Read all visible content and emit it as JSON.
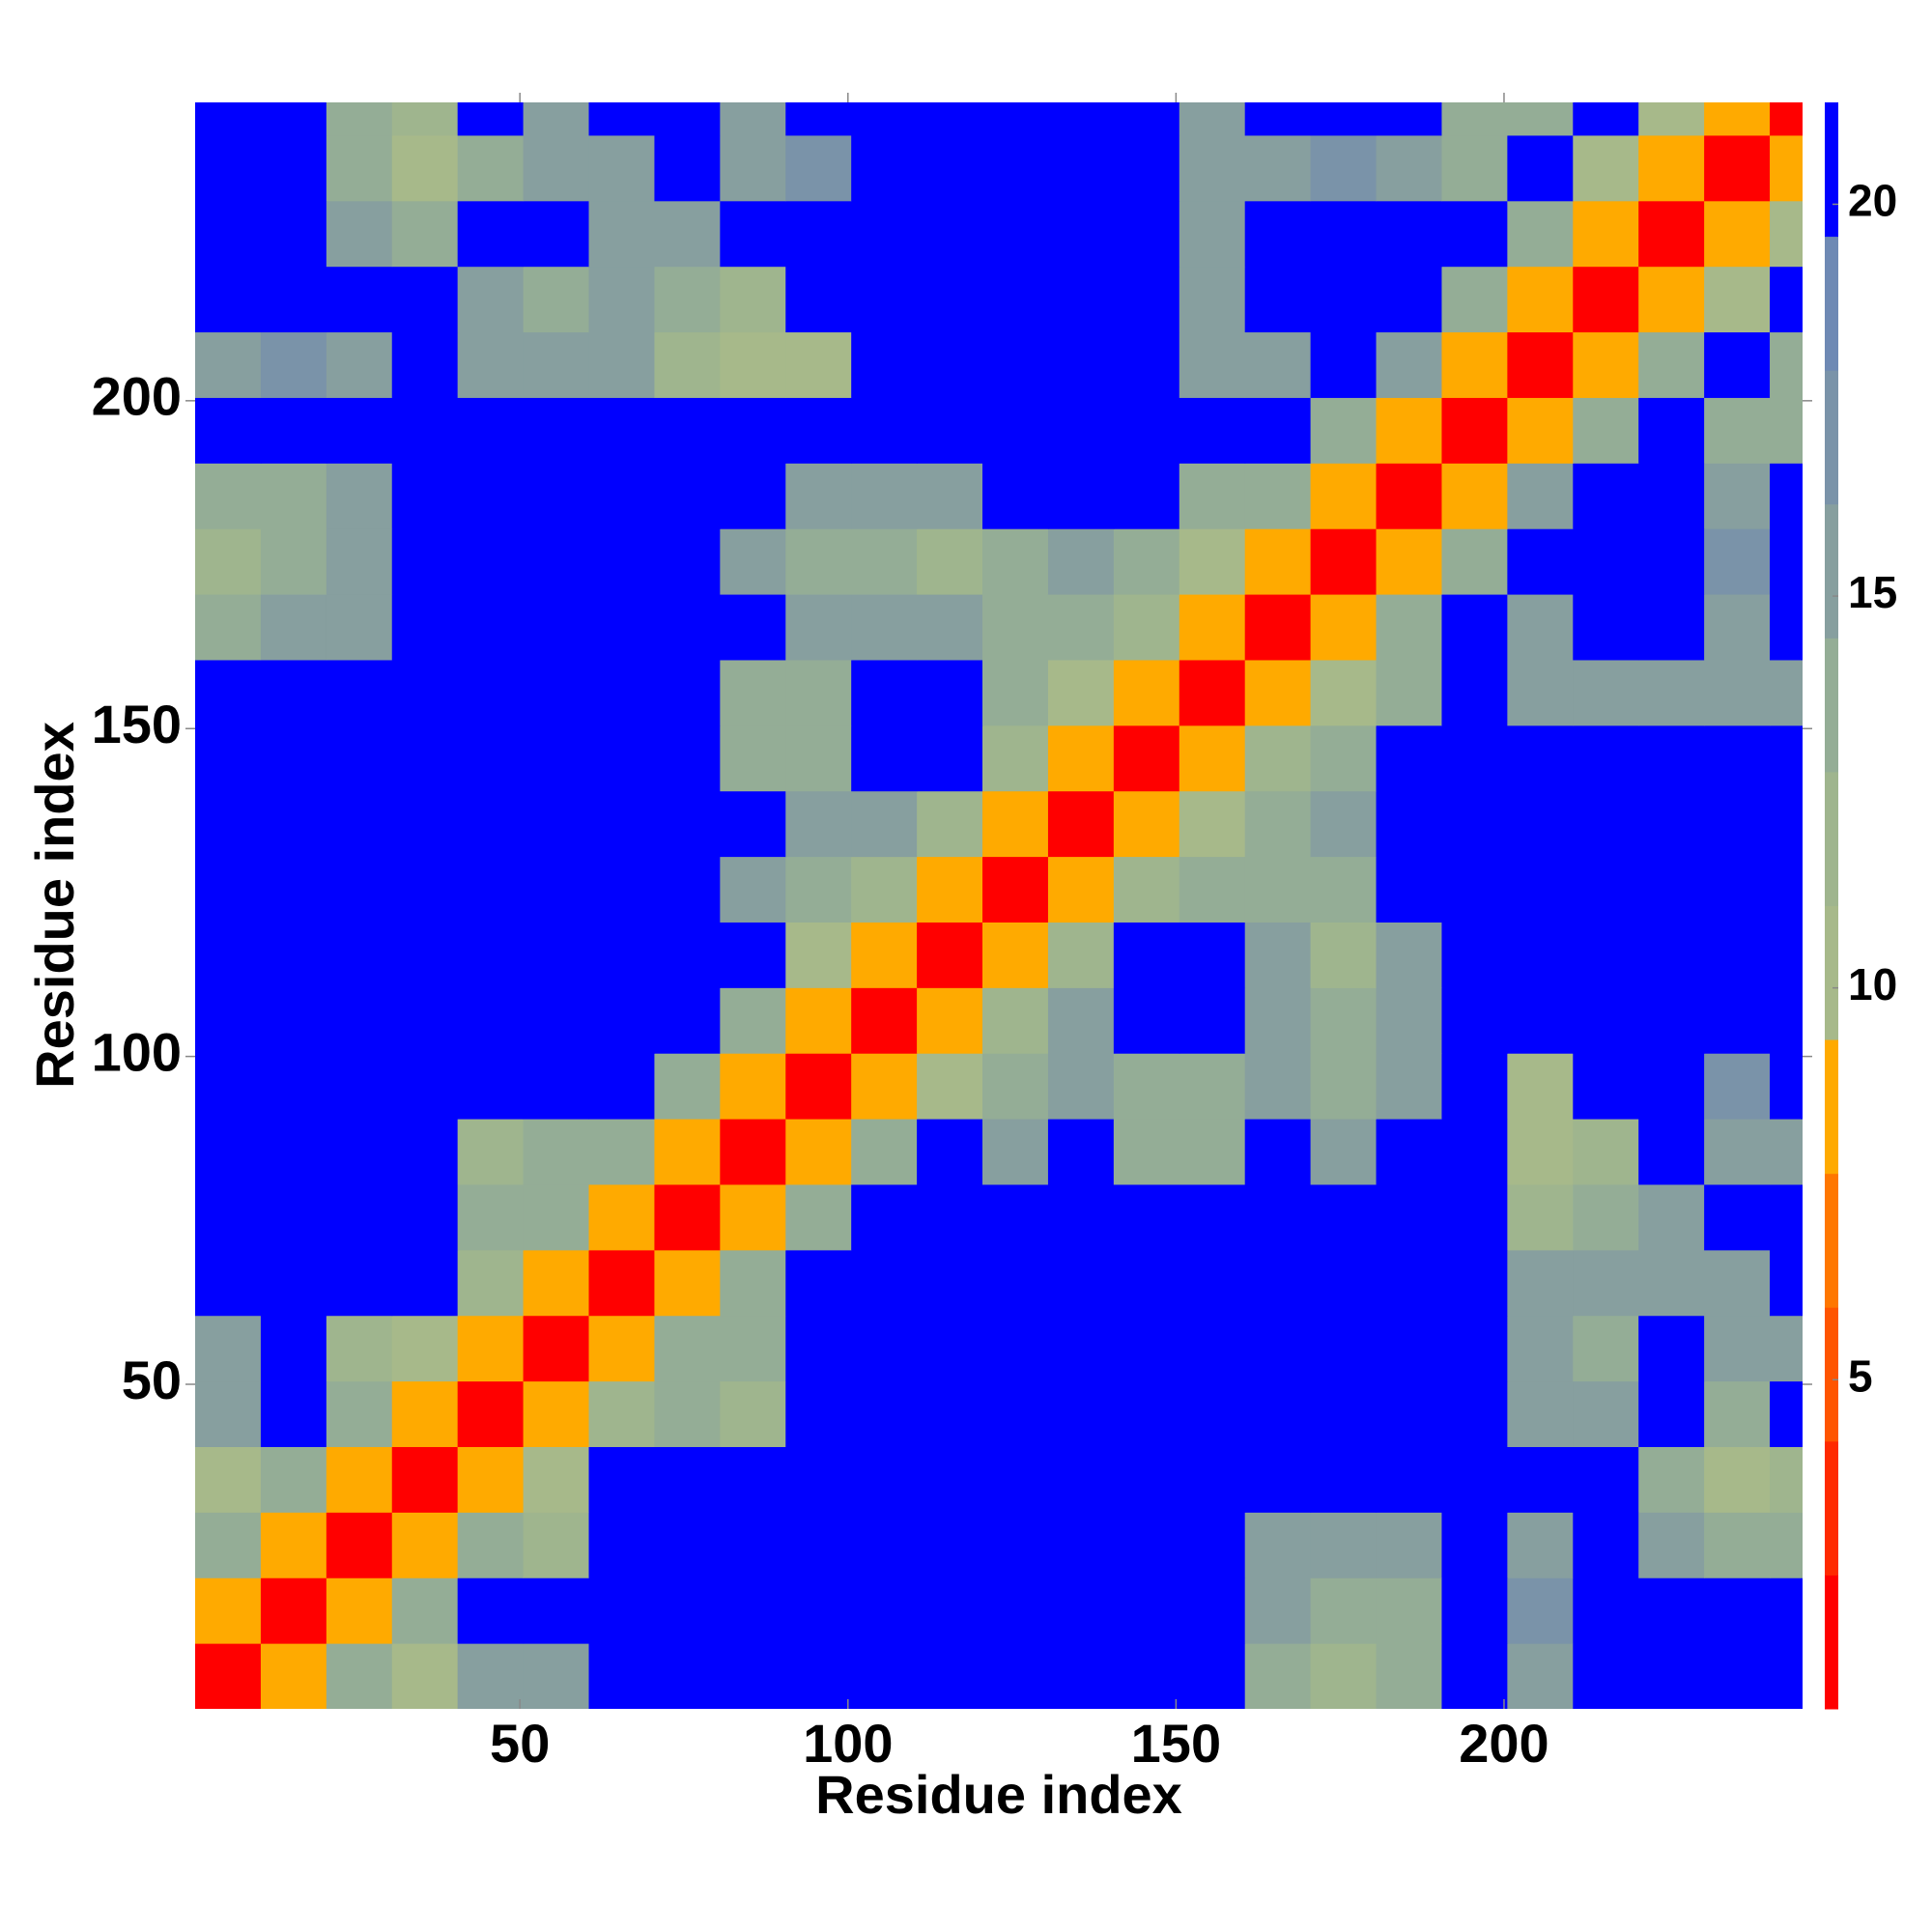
{
  "chart_data": {
    "type": "heatmap",
    "x_label": "Residue index",
    "y_label": "Residue index",
    "x": [
      5.5,
      15.5,
      25.5,
      35.5,
      45.5,
      55.5,
      65.5,
      75.5,
      85.5,
      95.5,
      105.5,
      115.5,
      125.5,
      135.5,
      145.5,
      155.5,
      165.5,
      175.5,
      185.5,
      195.5,
      205.5,
      215.5,
      225.5,
      235.5,
      245.5
    ],
    "y": [
      5.5,
      15.5,
      25.5,
      35.5,
      45.5,
      55.5,
      65.5,
      75.5,
      85.5,
      95.5,
      105.5,
      115.5,
      125.5,
      135.5,
      145.5,
      155.5,
      165.5,
      175.5,
      185.5,
      195.5,
      205.5,
      215.5,
      225.5,
      235.5,
      245.5
    ],
    "xlim": [
      0.5,
      245.5
    ],
    "ylim": [
      0.5,
      245.5
    ],
    "xticks": [
      50,
      100,
      150,
      200
    ],
    "yticks": [
      50,
      100,
      150,
      200
    ],
    "zlim": [
      0.8,
      21.3
    ],
    "zticks": [
      5,
      10,
      15,
      20
    ],
    "colors": [
      "#ff0000",
      "#ff2a00",
      "#ff5500",
      "#ff7700",
      "#ffaa00",
      "#a7b98a",
      "#9fb58e",
      "#94ad96",
      "#879f9f",
      "#7a93a9",
      "#6e89b4",
      "#0000ff"
    ],
    "z": [
      [
        2,
        8,
        13,
        10,
        15,
        16,
        21,
        21,
        21,
        21,
        21,
        21,
        21,
        21,
        21,
        21,
        14,
        12,
        13,
        21,
        16,
        21,
        21,
        21,
        21
      ],
      [
        8,
        2,
        8,
        14,
        21,
        21,
        21,
        21,
        21,
        21,
        21,
        21,
        21,
        21,
        21,
        21,
        15,
        13,
        14,
        21,
        17,
        21,
        21,
        21,
        21
      ],
      [
        13,
        8,
        2,
        8,
        14,
        12,
        21,
        21,
        21,
        21,
        21,
        21,
        21,
        21,
        21,
        21,
        16,
        15,
        16,
        21,
        15,
        21,
        15,
        13,
        13
      ],
      [
        10,
        14,
        8,
        2,
        8,
        11,
        21,
        21,
        21,
        21,
        21,
        21,
        21,
        21,
        21,
        21,
        21,
        21,
        21,
        21,
        21,
        21,
        13,
        10,
        12
      ],
      [
        15,
        21,
        14,
        8,
        2,
        8,
        12,
        13,
        12,
        21,
        21,
        21,
        21,
        21,
        21,
        21,
        21,
        21,
        21,
        21,
        16,
        15,
        21,
        14,
        21
      ],
      [
        16,
        21,
        12,
        11,
        8,
        2,
        8,
        13,
        14,
        21,
        21,
        21,
        21,
        21,
        21,
        21,
        21,
        21,
        21,
        21,
        15,
        14,
        21,
        15,
        16
      ],
      [
        21,
        21,
        21,
        21,
        12,
        8,
        2,
        8,
        13,
        21,
        21,
        21,
        21,
        21,
        21,
        21,
        21,
        21,
        21,
        21,
        16,
        16,
        15,
        16,
        21
      ],
      [
        21,
        21,
        21,
        21,
        13,
        13,
        8,
        2,
        8,
        14,
        21,
        21,
        21,
        21,
        21,
        21,
        21,
        21,
        21,
        21,
        12,
        13,
        16,
        21,
        21
      ],
      [
        21,
        21,
        21,
        21,
        12,
        14,
        13,
        8,
        2,
        8,
        13,
        21,
        16,
        21,
        14,
        14,
        21,
        16,
        21,
        21,
        11,
        12,
        21,
        15,
        16
      ],
      [
        21,
        21,
        21,
        21,
        21,
        21,
        21,
        14,
        8,
        2,
        8,
        11,
        14,
        15,
        13,
        13,
        15,
        14,
        15,
        21,
        10,
        21,
        21,
        17,
        21
      ],
      [
        21,
        21,
        21,
        21,
        21,
        21,
        21,
        21,
        13,
        8,
        2,
        8,
        12,
        15,
        21,
        21,
        15,
        13,
        15,
        21,
        21,
        21,
        21,
        21,
        21
      ],
      [
        21,
        21,
        21,
        21,
        21,
        21,
        21,
        21,
        21,
        11,
        8,
        2,
        8,
        12,
        21,
        21,
        16,
        12,
        16,
        21,
        21,
        21,
        21,
        21,
        21
      ],
      [
        21,
        21,
        21,
        21,
        21,
        21,
        21,
        21,
        16,
        14,
        12,
        8,
        2,
        8,
        12,
        13,
        14,
        14,
        21,
        21,
        21,
        21,
        21,
        21,
        21
      ],
      [
        21,
        21,
        21,
        21,
        21,
        21,
        21,
        21,
        21,
        15,
        15,
        12,
        8,
        2,
        8,
        11,
        13,
        15,
        21,
        21,
        21,
        21,
        21,
        21,
        21
      ],
      [
        21,
        21,
        21,
        21,
        21,
        21,
        21,
        21,
        14,
        13,
        21,
        21,
        12,
        8,
        2,
        8,
        12,
        13,
        21,
        21,
        21,
        21,
        21,
        21,
        21
      ],
      [
        21,
        21,
        21,
        21,
        21,
        21,
        21,
        21,
        14,
        13,
        21,
        21,
        13,
        11,
        8,
        2,
        8,
        11,
        14,
        21,
        15,
        15,
        15,
        15,
        16
      ],
      [
        14,
        15,
        16,
        21,
        21,
        21,
        21,
        21,
        21,
        15,
        15,
        16,
        14,
        13,
        12,
        8,
        2,
        8,
        13,
        21,
        16,
        21,
        21,
        16,
        21
      ],
      [
        12,
        13,
        15,
        21,
        21,
        21,
        21,
        21,
        16,
        14,
        13,
        12,
        14,
        15,
        13,
        11,
        8,
        2,
        8,
        14,
        21,
        21,
        21,
        17,
        21
      ],
      [
        13,
        14,
        16,
        21,
        21,
        21,
        21,
        21,
        21,
        15,
        15,
        16,
        21,
        21,
        21,
        14,
        13,
        8,
        2,
        8,
        15,
        21,
        21,
        16,
        21
      ],
      [
        21,
        21,
        21,
        21,
        21,
        21,
        21,
        21,
        21,
        21,
        21,
        21,
        21,
        21,
        21,
        21,
        21,
        14,
        8,
        2,
        8,
        14,
        21,
        13,
        13
      ],
      [
        16,
        17,
        15,
        21,
        16,
        15,
        16,
        12,
        11,
        10,
        21,
        21,
        21,
        21,
        21,
        15,
        16,
        21,
        15,
        8,
        2,
        8,
        13,
        21,
        13
      ],
      [
        21,
        21,
        21,
        21,
        15,
        14,
        16,
        13,
        12,
        21,
        21,
        21,
        21,
        21,
        21,
        15,
        21,
        21,
        21,
        14,
        8,
        2,
        8,
        11,
        21
      ],
      [
        21,
        21,
        15,
        13,
        21,
        21,
        15,
        16,
        21,
        21,
        21,
        21,
        21,
        21,
        21,
        15,
        21,
        21,
        21,
        21,
        13,
        8,
        2,
        8,
        11
      ],
      [
        21,
        21,
        13,
        10,
        14,
        15,
        16,
        21,
        15,
        17,
        21,
        21,
        21,
        21,
        21,
        15,
        16,
        17,
        16,
        13,
        21,
        11,
        8,
        2,
        8
      ],
      [
        21,
        21,
        13,
        12,
        21,
        16,
        21,
        21,
        16,
        21,
        21,
        21,
        21,
        21,
        21,
        16,
        21,
        21,
        21,
        13,
        13,
        21,
        11,
        8,
        2
      ]
    ]
  }
}
